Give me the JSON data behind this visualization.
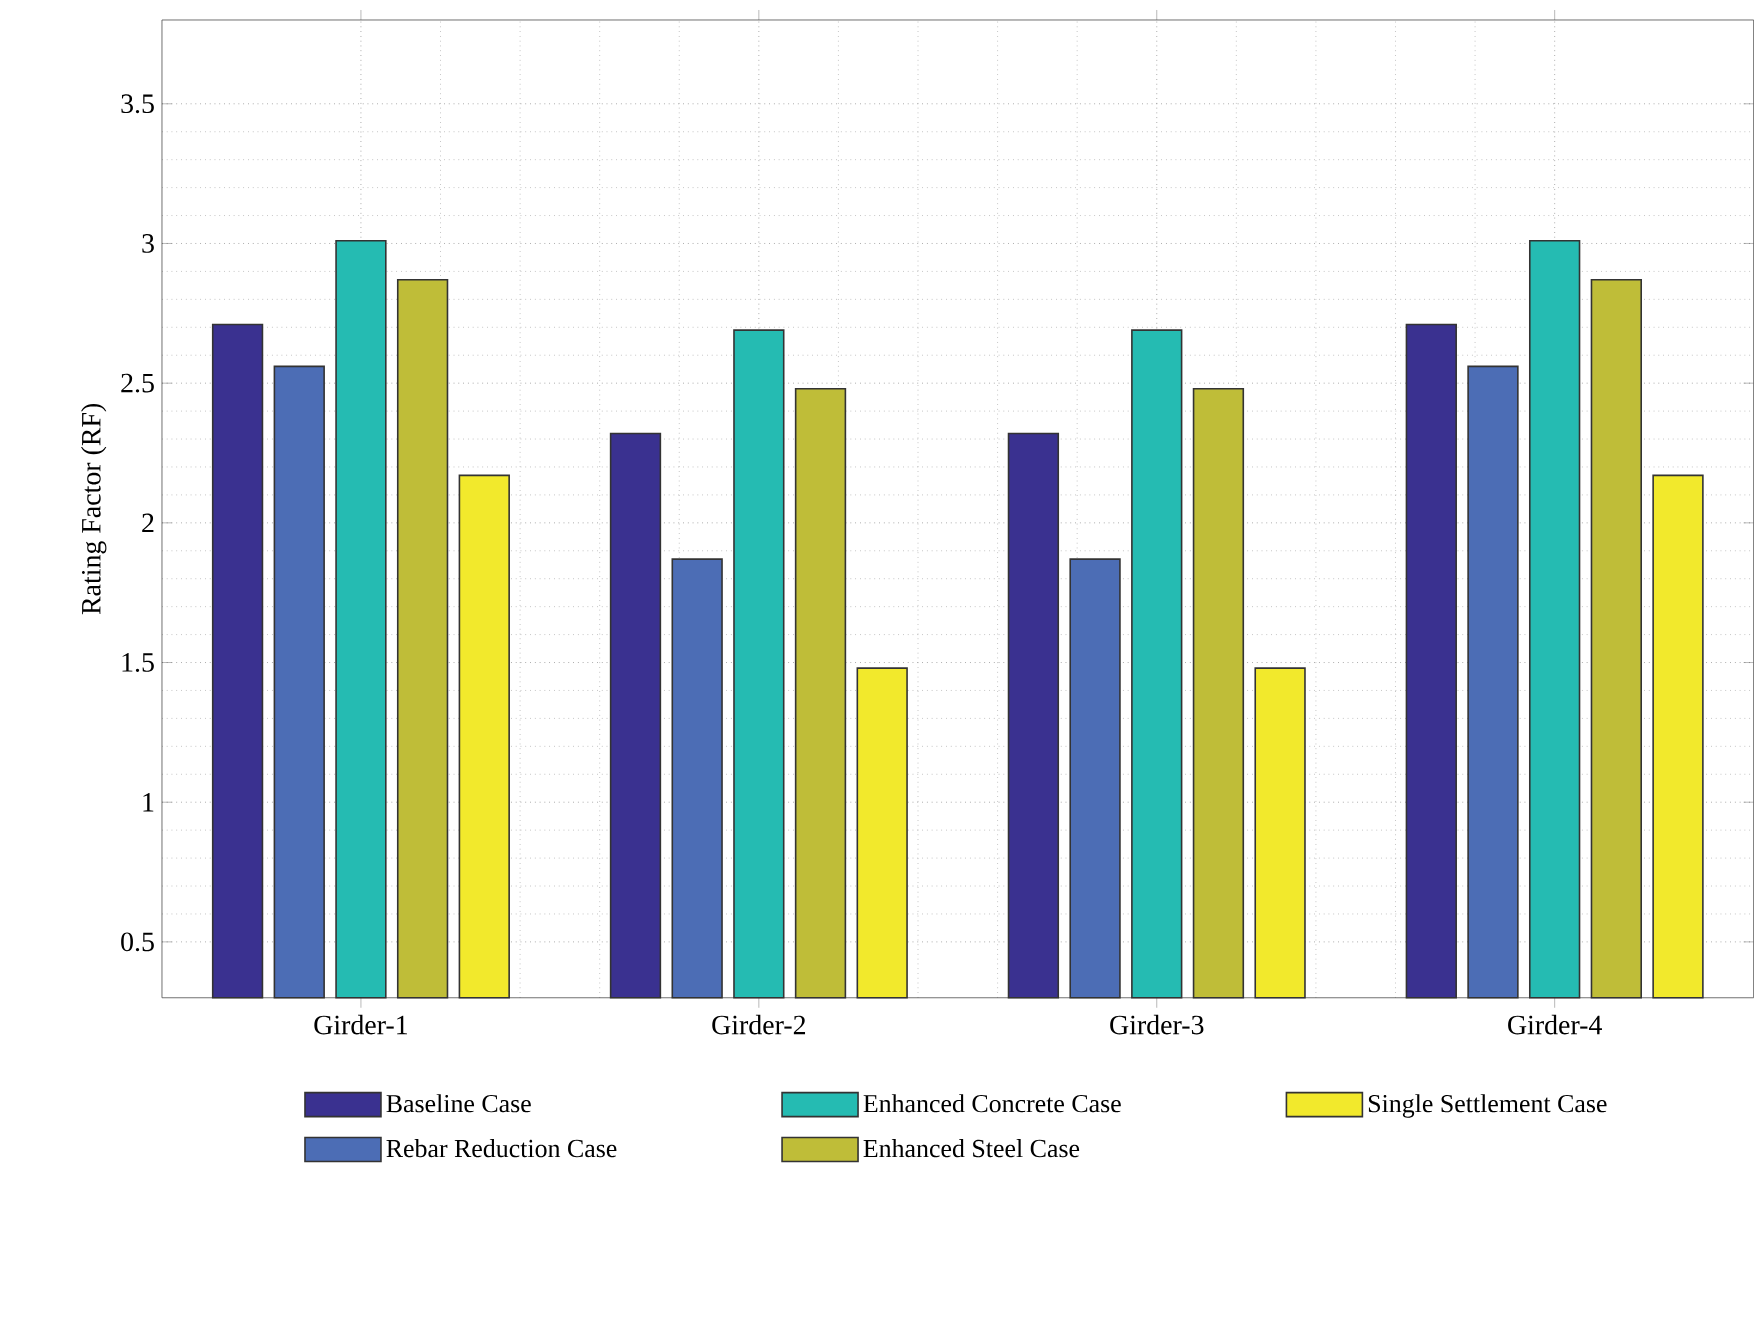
{
  "chart_data": {
    "type": "bar",
    "ylabel": "Rating Factor (RF)",
    "categories": [
      "Girder-1",
      "Girder-2",
      "Girder-3",
      "Girder-4"
    ],
    "series": [
      {
        "name": "Baseline Case",
        "color": "#3a3190",
        "values": [
          2.71,
          2.32,
          2.32,
          2.71
        ]
      },
      {
        "name": "Rebar Reduction Case",
        "color": "#4c6db5",
        "values": [
          2.56,
          1.87,
          1.87,
          2.56
        ]
      },
      {
        "name": "Enhanced Concrete Case",
        "color": "#25bbb2",
        "values": [
          3.01,
          2.69,
          2.69,
          3.01
        ]
      },
      {
        "name": "Enhanced Steel Case",
        "color": "#bfbd38",
        "values": [
          2.87,
          2.48,
          2.48,
          2.87
        ]
      },
      {
        "name": "Single Settlement Case",
        "color": "#f2e92c",
        "values": [
          2.17,
          1.48,
          1.48,
          2.17
        ]
      }
    ],
    "ylim": [
      0.3,
      3.8
    ],
    "yticks": [
      0.5,
      1,
      1.5,
      2,
      2.5,
      3,
      3.5
    ],
    "grid": true,
    "legend": "bottom"
  }
}
